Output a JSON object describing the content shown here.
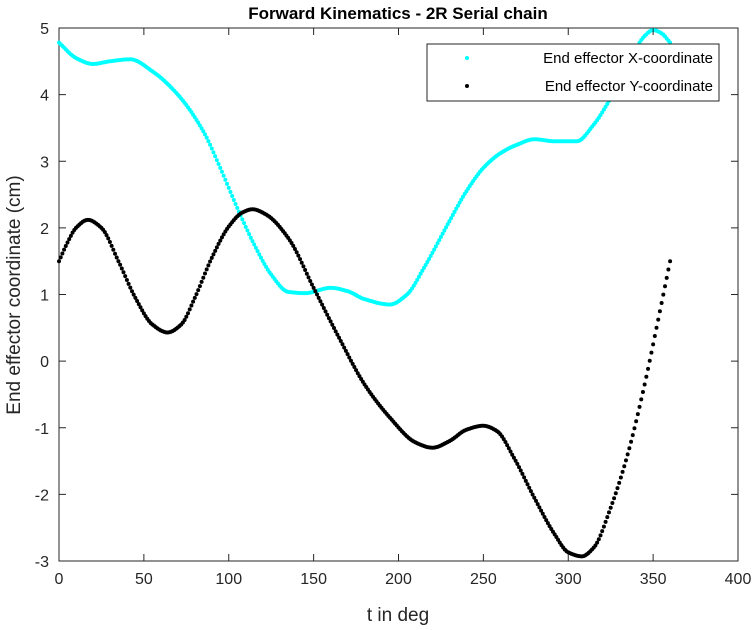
{
  "chart_data": {
    "type": "scatter",
    "title": "Forward Kinematics - 2R Serial chain",
    "xlabel": "t in deg",
    "ylabel": "End effector coordinate (cm)",
    "xlim": [
      0,
      400
    ],
    "ylim": [
      -3,
      5
    ],
    "xticks": [
      0,
      50,
      100,
      150,
      200,
      250,
      300,
      350,
      400
    ],
    "yticks": [
      -3,
      -2,
      -1,
      0,
      1,
      2,
      3,
      4,
      5
    ],
    "grid": false,
    "legend_position": "top-right",
    "sample_step_deg": 1,
    "x_range": [
      0,
      360
    ],
    "series": [
      {
        "name": "End effector X-coordinate",
        "color": "#00ffff",
        "points": [
          [
            0,
            4.78
          ],
          [
            10,
            4.55
          ],
          [
            20,
            4.46
          ],
          [
            30,
            4.5
          ],
          [
            42,
            4.53
          ],
          [
            55,
            4.35
          ],
          [
            70,
            4.0
          ],
          [
            85,
            3.45
          ],
          [
            95,
            2.9
          ],
          [
            105,
            2.3
          ],
          [
            115,
            1.75
          ],
          [
            125,
            1.3
          ],
          [
            135,
            1.04
          ],
          [
            145,
            1.02
          ],
          [
            160,
            1.1
          ],
          [
            170,
            1.05
          ],
          [
            180,
            0.93
          ],
          [
            195,
            0.85
          ],
          [
            205,
            1.0
          ],
          [
            215,
            1.4
          ],
          [
            230,
            2.1
          ],
          [
            240,
            2.55
          ],
          [
            250,
            2.9
          ],
          [
            260,
            3.12
          ],
          [
            270,
            3.25
          ],
          [
            280,
            3.33
          ],
          [
            292,
            3.3
          ],
          [
            305,
            3.3
          ],
          [
            315,
            3.55
          ],
          [
            325,
            3.95
          ],
          [
            335,
            4.45
          ],
          [
            345,
            4.88
          ],
          [
            350,
            4.97
          ],
          [
            355,
            4.92
          ],
          [
            360,
            4.78
          ]
        ]
      },
      {
        "name": "End effector Y-coordinate",
        "color": "#000000",
        "points": [
          [
            0,
            1.5
          ],
          [
            5,
            1.78
          ],
          [
            10,
            2.0
          ],
          [
            17,
            2.12
          ],
          [
            25,
            2.0
          ],
          [
            35,
            1.5
          ],
          [
            45,
            0.95
          ],
          [
            55,
            0.55
          ],
          [
            64,
            0.43
          ],
          [
            72,
            0.55
          ],
          [
            80,
            0.95
          ],
          [
            90,
            1.55
          ],
          [
            100,
            2.02
          ],
          [
            108,
            2.23
          ],
          [
            114,
            2.28
          ],
          [
            122,
            2.2
          ],
          [
            135,
            1.85
          ],
          [
            150,
            1.1
          ],
          [
            165,
            0.35
          ],
          [
            180,
            -0.35
          ],
          [
            195,
            -0.85
          ],
          [
            210,
            -1.22
          ],
          [
            220,
            -1.3
          ],
          [
            230,
            -1.2
          ],
          [
            240,
            -1.03
          ],
          [
            250,
            -0.97
          ],
          [
            258,
            -1.05
          ],
          [
            268,
            -1.45
          ],
          [
            280,
            -2.05
          ],
          [
            292,
            -2.6
          ],
          [
            300,
            -2.87
          ],
          [
            308,
            -2.93
          ],
          [
            315,
            -2.8
          ],
          [
            325,
            -2.2
          ],
          [
            335,
            -1.4
          ],
          [
            345,
            -0.35
          ],
          [
            352,
            0.5
          ],
          [
            360,
            1.5
          ]
        ]
      }
    ]
  }
}
